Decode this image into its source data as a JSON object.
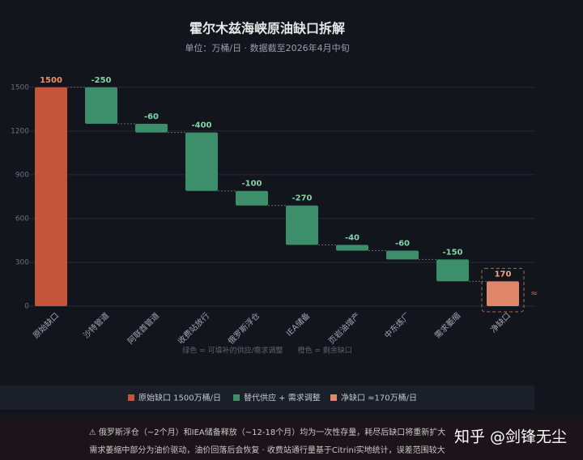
{
  "chart_data": {
    "type": "waterfall",
    "title": "霍尔木兹海峡原油缺口拆解",
    "subtitle": "单位：万桶/日 · 数据截至2026年4月中旬",
    "categories": [
      "原始缺口",
      "沙特管道",
      "阿联酋管道",
      "收费站放行",
      "俄罗斯浮仓",
      "IEA储备",
      "页岩油增产",
      "中东炼厂",
      "需求萎缩",
      "净缺口"
    ],
    "values": [
      1500,
      -250,
      -60,
      -400,
      -100,
      -270,
      -40,
      -60,
      -150,
      170
    ],
    "measures": [
      "absolute",
      "relative",
      "relative",
      "relative",
      "relative",
      "relative",
      "relative",
      "relative",
      "relative",
      "total"
    ],
    "colors": [
      "#c4553b",
      "#3d8f6b",
      "#3d8f6b",
      "#3d8f6b",
      "#3d8f6b",
      "#3d8f6b",
      "#3d8f6b",
      "#3d8f6b",
      "#3d8f6b",
      "#e0866a"
    ],
    "label_colors": [
      "#f0905f",
      "#7fd6a8",
      "#7fd6a8",
      "#7fd6a8",
      "#7fd6a8",
      "#7fd6a8",
      "#7fd6a8",
      "#7fd6a8",
      "#7fd6a8",
      "#f4a57e"
    ],
    "ylim": [
      0,
      1560
    ],
    "yticks": [
      0,
      300,
      600,
      900,
      1200,
      1500
    ],
    "grid": true,
    "final_annotation": "≈",
    "note": "绿色 = 可填补的供应/需求调整　　橙色 = 剩余缺口",
    "legend": [
      {
        "label": "原始缺口 1500万桶/日",
        "color": "#c4553b"
      },
      {
        "label": "替代供应 + 需求调整",
        "color": "#3d8f6b"
      },
      {
        "label": "净缺口 ≈170万桶/日",
        "color": "#e0866a"
      }
    ]
  },
  "footer": [
    "⚠ 俄罗斯浮仓（~2个月）和IEA储备释放（~12-18个月）均为一次性存量，耗尽后缺口将重新扩大",
    "需求萎缩中部分为油价驱动，油价回落后会恢复 · 收费站通行量基于Citrini实地统计，误差范围较大"
  ],
  "watermark": "知乎 @剑锋无尘"
}
